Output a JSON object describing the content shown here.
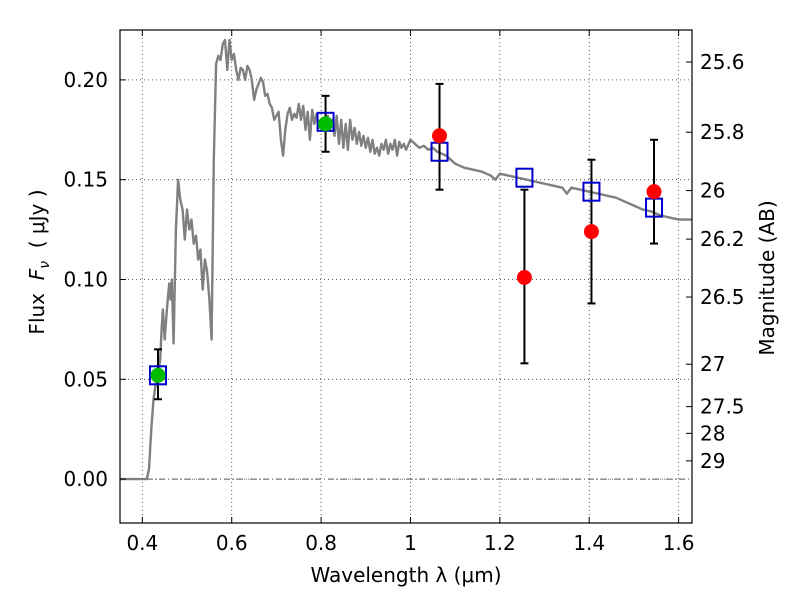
{
  "chart_data": {
    "type": "scatter",
    "xlabel": "Wavelength  λ (μm)",
    "ylabel": "Flux  F_ν ( μJy )",
    "ylabel_parts": {
      "prefix": "Flux  ",
      "symbol": "F",
      "subscript": "ν",
      "suffix": "  ( μJy )"
    },
    "y2label": "Magnitude (AB)",
    "xlim": [
      0.35,
      1.63
    ],
    "ylim": [
      -0.022,
      0.225
    ],
    "grid": true,
    "grid_style": "dotted",
    "x_ticks": [
      0.4,
      0.6,
      0.8,
      1.0,
      1.2,
      1.4,
      1.6
    ],
    "x_tick_labels": [
      "0.4",
      "0.6",
      "0.8",
      "1",
      "1.2",
      "1.4",
      "1.6"
    ],
    "y_ticks": [
      0.0,
      0.05,
      0.1,
      0.15,
      0.2
    ],
    "y_tick_labels": [
      "0.00",
      "0.05",
      "0.10",
      "0.15",
      "0.20"
    ],
    "y2_tick_labels": [
      "25.6",
      "25.8",
      "26",
      "26.2",
      "26.5",
      "27",
      "27.5",
      "28",
      "29"
    ],
    "y2_tick_values": [
      25.6,
      25.8,
      26.0,
      26.2,
      26.5,
      27.0,
      27.5,
      28.0,
      29.0
    ],
    "zero_line": {
      "y": 0,
      "color": "#555555",
      "style": "dashdot"
    },
    "model_spectrum": {
      "color": "#808080",
      "points": [
        [
          0.35,
          0.0
        ],
        [
          0.4,
          0.0
        ],
        [
          0.41,
          0.0
        ],
        [
          0.415,
          0.005
        ],
        [
          0.42,
          0.025
        ],
        [
          0.425,
          0.04
        ],
        [
          0.43,
          0.048
        ],
        [
          0.435,
          0.052
        ],
        [
          0.44,
          0.06
        ],
        [
          0.443,
          0.075
        ],
        [
          0.446,
          0.085
        ],
        [
          0.45,
          0.07
        ],
        [
          0.455,
          0.085
        ],
        [
          0.46,
          0.098
        ],
        [
          0.463,
          0.09
        ],
        [
          0.466,
          0.1
        ],
        [
          0.47,
          0.068
        ],
        [
          0.475,
          0.125
        ],
        [
          0.48,
          0.15
        ],
        [
          0.485,
          0.14
        ],
        [
          0.49,
          0.135
        ],
        [
          0.495,
          0.12
        ],
        [
          0.5,
          0.135
        ],
        [
          0.505,
          0.125
        ],
        [
          0.51,
          0.13
        ],
        [
          0.515,
          0.118
        ],
        [
          0.52,
          0.122
        ],
        [
          0.525,
          0.11
        ],
        [
          0.53,
          0.115
        ],
        [
          0.535,
          0.095
        ],
        [
          0.54,
          0.11
        ],
        [
          0.545,
          0.104
        ],
        [
          0.55,
          0.09
        ],
        [
          0.555,
          0.07
        ],
        [
          0.56,
          0.16
        ],
        [
          0.565,
          0.208
        ],
        [
          0.57,
          0.212
        ],
        [
          0.575,
          0.21
        ],
        [
          0.58,
          0.218
        ],
        [
          0.585,
          0.22
        ],
        [
          0.59,
          0.205
        ],
        [
          0.595,
          0.22
        ],
        [
          0.6,
          0.21
        ],
        [
          0.605,
          0.213
        ],
        [
          0.61,
          0.205
        ],
        [
          0.615,
          0.2
        ],
        [
          0.62,
          0.206
        ],
        [
          0.625,
          0.205
        ],
        [
          0.63,
          0.2
        ],
        [
          0.635,
          0.207
        ],
        [
          0.64,
          0.205
        ],
        [
          0.645,
          0.2
        ],
        [
          0.65,
          0.19
        ],
        [
          0.655,
          0.195
        ],
        [
          0.66,
          0.198
        ],
        [
          0.665,
          0.201
        ],
        [
          0.67,
          0.199
        ],
        [
          0.675,
          0.192
        ],
        [
          0.68,
          0.193
        ],
        [
          0.685,
          0.188
        ],
        [
          0.69,
          0.186
        ],
        [
          0.695,
          0.18
        ],
        [
          0.7,
          0.182
        ],
        [
          0.705,
          0.184
        ],
        [
          0.71,
          0.17
        ],
        [
          0.715,
          0.162
        ],
        [
          0.72,
          0.175
        ],
        [
          0.725,
          0.183
        ],
        [
          0.73,
          0.186
        ],
        [
          0.735,
          0.18
        ],
        [
          0.74,
          0.183
        ],
        [
          0.745,
          0.181
        ],
        [
          0.75,
          0.188
        ],
        [
          0.755,
          0.18
        ],
        [
          0.76,
          0.187
        ],
        [
          0.765,
          0.175
        ],
        [
          0.77,
          0.184
        ],
        [
          0.775,
          0.17
        ],
        [
          0.78,
          0.185
        ],
        [
          0.785,
          0.178
        ],
        [
          0.79,
          0.183
        ],
        [
          0.795,
          0.176
        ],
        [
          0.8,
          0.18
        ],
        [
          0.81,
          0.178
        ],
        [
          0.815,
          0.182
        ],
        [
          0.82,
          0.175
        ],
        [
          0.825,
          0.18
        ],
        [
          0.83,
          0.172
        ],
        [
          0.835,
          0.182
        ],
        [
          0.84,
          0.168
        ],
        [
          0.845,
          0.18
        ],
        [
          0.85,
          0.166
        ],
        [
          0.855,
          0.178
        ],
        [
          0.86,
          0.165
        ],
        [
          0.865,
          0.18
        ],
        [
          0.87,
          0.17
        ],
        [
          0.875,
          0.176
        ],
        [
          0.88,
          0.168
        ],
        [
          0.885,
          0.174
        ],
        [
          0.89,
          0.167
        ],
        [
          0.895,
          0.172
        ],
        [
          0.9,
          0.166
        ],
        [
          0.905,
          0.171
        ],
        [
          0.91,
          0.164
        ],
        [
          0.915,
          0.17
        ],
        [
          0.92,
          0.163
        ],
        [
          0.925,
          0.166
        ],
        [
          0.93,
          0.162
        ],
        [
          0.935,
          0.168
        ],
        [
          0.94,
          0.165
        ],
        [
          0.945,
          0.17
        ],
        [
          0.95,
          0.163
        ],
        [
          0.955,
          0.168
        ],
        [
          0.96,
          0.165
        ],
        [
          0.965,
          0.17
        ],
        [
          0.97,
          0.162
        ],
        [
          0.975,
          0.169
        ],
        [
          0.98,
          0.166
        ],
        [
          0.985,
          0.168
        ],
        [
          0.99,
          0.165
        ],
        [
          1.0,
          0.17
        ],
        [
          1.01,
          0.168
        ],
        [
          1.02,
          0.166
        ],
        [
          1.03,
          0.167
        ],
        [
          1.04,
          0.165
        ],
        [
          1.05,
          0.166
        ],
        [
          1.06,
          0.164
        ],
        [
          1.07,
          0.163
        ],
        [
          1.08,
          0.162
        ],
        [
          1.09,
          0.16
        ],
        [
          1.1,
          0.158
        ],
        [
          1.12,
          0.156
        ],
        [
          1.14,
          0.155
        ],
        [
          1.16,
          0.154
        ],
        [
          1.18,
          0.152
        ],
        [
          1.19,
          0.15
        ],
        [
          1.2,
          0.153
        ],
        [
          1.22,
          0.152
        ],
        [
          1.24,
          0.151
        ],
        [
          1.26,
          0.15
        ],
        [
          1.28,
          0.149
        ],
        [
          1.3,
          0.148
        ],
        [
          1.32,
          0.147
        ],
        [
          1.34,
          0.146
        ],
        [
          1.35,
          0.143
        ],
        [
          1.36,
          0.146
        ],
        [
          1.38,
          0.145
        ],
        [
          1.4,
          0.144
        ],
        [
          1.42,
          0.143
        ],
        [
          1.44,
          0.142
        ],
        [
          1.46,
          0.141
        ],
        [
          1.48,
          0.139
        ],
        [
          1.5,
          0.137
        ],
        [
          1.52,
          0.135
        ],
        [
          1.54,
          0.134
        ],
        [
          1.56,
          0.132
        ],
        [
          1.58,
          0.131
        ],
        [
          1.6,
          0.13
        ],
        [
          1.63,
          0.13
        ]
      ]
    },
    "model_bands": {
      "marker": "open-square",
      "color": "#0000cc",
      "points": [
        {
          "x": 0.435,
          "y": 0.052
        },
        {
          "x": 0.81,
          "y": 0.179
        },
        {
          "x": 1.065,
          "y": 0.164
        },
        {
          "x": 1.255,
          "y": 0.151
        },
        {
          "x": 1.405,
          "y": 0.144
        },
        {
          "x": 1.545,
          "y": 0.136
        }
      ]
    },
    "observations": [
      {
        "x": 0.435,
        "y": 0.052,
        "yerr_low": 0.04,
        "yerr_high": 0.065,
        "color": "#00bb00"
      },
      {
        "x": 0.81,
        "y": 0.178,
        "yerr_low": 0.164,
        "yerr_high": 0.192,
        "color": "#00bb00"
      },
      {
        "x": 1.065,
        "y": 0.172,
        "yerr_low": 0.145,
        "yerr_high": 0.198,
        "color": "#ff0000"
      },
      {
        "x": 1.255,
        "y": 0.101,
        "yerr_low": 0.058,
        "yerr_high": 0.145,
        "color": "#ff0000"
      },
      {
        "x": 1.405,
        "y": 0.124,
        "yerr_low": 0.088,
        "yerr_high": 0.16,
        "color": "#ff0000"
      },
      {
        "x": 1.545,
        "y": 0.144,
        "yerr_low": 0.118,
        "yerr_high": 0.17,
        "color": "#ff0000"
      }
    ]
  }
}
